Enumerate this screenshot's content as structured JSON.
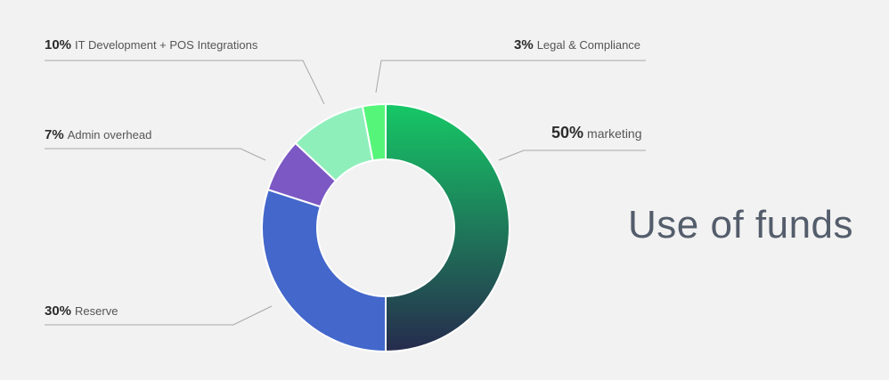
{
  "chart_data": {
    "type": "pie",
    "title": "Use of funds",
    "slices": [
      {
        "label": "marketing",
        "percent_label": "50%",
        "value": 50,
        "color": "#16c866",
        "color_end": "#262b4d"
      },
      {
        "label": "Reserve",
        "percent_label": "30%",
        "value": 30,
        "color": "#4367cb"
      },
      {
        "label": "Admin overhead",
        "percent_label": "7%",
        "value": 7,
        "color": "#7b58c3"
      },
      {
        "label": "IT Development + POS Integrations",
        "percent_label": "10%",
        "value": 10,
        "color": "#8eefbb"
      },
      {
        "label": "Legal & Compliance",
        "percent_label": "3%",
        "value": 3,
        "color": "#55f57a"
      }
    ],
    "legend": "callout-labels"
  }
}
